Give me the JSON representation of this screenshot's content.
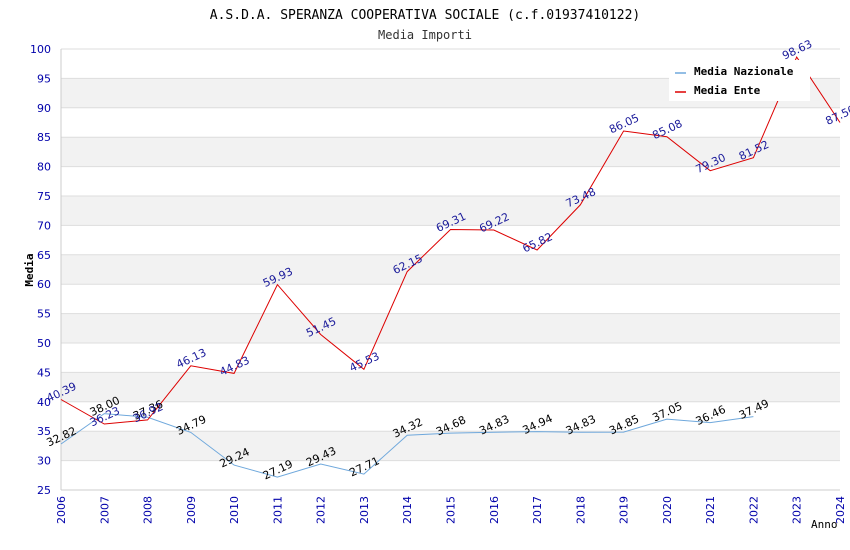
{
  "chart_data": {
    "type": "line",
    "title": "A.S.D.A. SPERANZA COOPERATIVA SOCIALE (c.f.01937410122)",
    "subtitle": "Media Importi",
    "xlabel": "Anno",
    "ylabel": "Media",
    "ylim": [
      25,
      100
    ],
    "yticks": [
      25,
      30,
      35,
      40,
      45,
      50,
      55,
      60,
      65,
      70,
      75,
      80,
      85,
      90,
      95,
      100
    ],
    "xlim": [
      2006,
      2024
    ],
    "x": [
      2006,
      2007,
      2008,
      2009,
      2010,
      2011,
      2012,
      2013,
      2014,
      2015,
      2016,
      2017,
      2018,
      2019,
      2020,
      2021,
      2022,
      2023,
      2024
    ],
    "grid": true,
    "legend_position": "top-right",
    "series": [
      {
        "name": "Media Nazionale",
        "color": "#6fa8dc",
        "label_color": "#000000",
        "x": [
          2006,
          2007,
          2008,
          2009,
          2010,
          2011,
          2012,
          2013,
          2014,
          2015,
          2016,
          2017,
          2018,
          2019,
          2020,
          2021,
          2022
        ],
        "values": [
          32.82,
          38.0,
          37.36,
          34.79,
          29.24,
          27.19,
          29.43,
          27.71,
          34.32,
          34.68,
          34.83,
          34.94,
          34.83,
          34.85,
          37.05,
          36.46,
          37.49
        ],
        "labels": [
          "32.82",
          "38.00",
          "37.36",
          "34.79",
          "29.24",
          "27.19",
          "29.43",
          "27.71",
          "34.32",
          "34.68",
          "34.83",
          "34.94",
          "34.83",
          "34.85",
          "37.05",
          "36.46",
          "37.49"
        ]
      },
      {
        "name": "Media Ente",
        "color": "#dd0000",
        "label_color": "#1a1a9a",
        "x": [
          2006,
          2007,
          2008,
          2009,
          2010,
          2011,
          2012,
          2013,
          2014,
          2015,
          2016,
          2017,
          2018,
          2019,
          2020,
          2021,
          2022,
          2023,
          2024
        ],
        "values": [
          40.39,
          36.23,
          36.92,
          46.13,
          44.83,
          59.93,
          51.45,
          45.53,
          62.15,
          69.31,
          69.22,
          65.82,
          73.48,
          86.05,
          85.08,
          79.3,
          81.52,
          98.63,
          87.5
        ],
        "labels": [
          "40.39",
          "36.23",
          "36.92",
          "46.13",
          "44.83",
          "59.93",
          "51.45",
          "45.53",
          "62.15",
          "69.31",
          "69.22",
          "65.82",
          "73.48",
          "86.05",
          "85.08",
          "79.30",
          "81.52",
          "98.63",
          "87.50"
        ]
      }
    ],
    "colors": {
      "band": "#f2f2f2",
      "gridline": "#dddddd",
      "tick_label": "#0000aa",
      "title": "#000000",
      "subtitle": "#333333"
    }
  }
}
